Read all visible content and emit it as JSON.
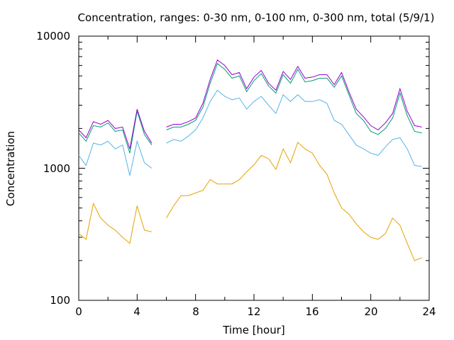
{
  "chart_data": {
    "type": "line",
    "title": "Concentration, ranges: 0-30 nm, 0-100 nm, 0-300 nm, total (5/9/1)",
    "xlabel": "Time [hour]",
    "ylabel": "Concentration",
    "xlim": [
      0,
      24
    ],
    "ylim": [
      100,
      10000
    ],
    "yscale": "log",
    "grid": false,
    "legend": "none",
    "x_ticks": [
      "0",
      "4",
      "8",
      "12",
      "16",
      "20",
      "24"
    ],
    "y_ticks": [
      "100",
      "1000",
      "10000"
    ],
    "x": [
      0,
      0.5,
      1,
      1.5,
      2,
      2.5,
      3,
      3.5,
      4,
      4.5,
      5,
      5.5,
      6,
      6.5,
      7,
      7.5,
      8,
      8.5,
      9,
      9.5,
      10,
      10.5,
      11,
      11.5,
      12,
      12.5,
      13,
      13.5,
      14,
      14.5,
      15,
      15.5,
      16,
      16.5,
      17,
      17.5,
      18,
      18.5,
      19,
      19.5,
      20,
      20.5,
      21,
      21.5,
      22,
      22.5,
      23,
      23.5
    ],
    "series": [
      {
        "color": "#e5a100",
        "values": [
          320,
          290,
          540,
          420,
          370,
          340,
          300,
          270,
          520,
          340,
          330,
          null,
          420,
          520,
          620,
          620,
          650,
          680,
          820,
          760,
          760,
          760,
          820,
          940,
          1060,
          1250,
          1180,
          980,
          1400,
          1100,
          1570,
          1400,
          1300,
          1050,
          900,
          650,
          500,
          450,
          380,
          330,
          300,
          290,
          320,
          420,
          370,
          270,
          200,
          210
        ]
      },
      {
        "color": "#56b4e9",
        "values": [
          1250,
          1050,
          1550,
          1500,
          1600,
          1400,
          1500,
          880,
          1600,
          1100,
          1000,
          null,
          1550,
          1650,
          1600,
          1750,
          1950,
          2400,
          3200,
          3900,
          3500,
          3300,
          3400,
          2800,
          3200,
          3500,
          3000,
          2600,
          3600,
          3200,
          3600,
          3200,
          3200,
          3300,
          3100,
          2300,
          2150,
          1800,
          1500,
          1400,
          1300,
          1250,
          1450,
          1650,
          1700,
          1400,
          1050,
          1030
        ]
      },
      {
        "color": "#009e73",
        "values": [
          1850,
          1600,
          2100,
          2050,
          2200,
          1900,
          1950,
          1300,
          2700,
          1800,
          1500,
          null,
          1950,
          2050,
          2050,
          2150,
          2300,
          2900,
          4400,
          6200,
          5600,
          4800,
          5000,
          3800,
          4600,
          5200,
          4200,
          3700,
          5100,
          4400,
          5600,
          4500,
          4600,
          4800,
          4800,
          4100,
          5000,
          3600,
          2600,
          2300,
          1900,
          1800,
          2000,
          2400,
          3700,
          2500,
          1900,
          1850
        ]
      },
      {
        "color": "#9400d3",
        "values": [
          1950,
          1700,
          2250,
          2150,
          2300,
          2000,
          2050,
          1400,
          2800,
          1900,
          1550,
          null,
          2050,
          2150,
          2150,
          2250,
          2400,
          3100,
          4700,
          6600,
          6000,
          5100,
          5300,
          4000,
          4900,
          5500,
          4400,
          3900,
          5400,
          4700,
          5900,
          4800,
          4900,
          5100,
          5100,
          4300,
          5300,
          3800,
          2800,
          2450,
          2100,
          1950,
          2200,
          2600,
          4000,
          2700,
          2100,
          2050
        ]
      }
    ]
  }
}
